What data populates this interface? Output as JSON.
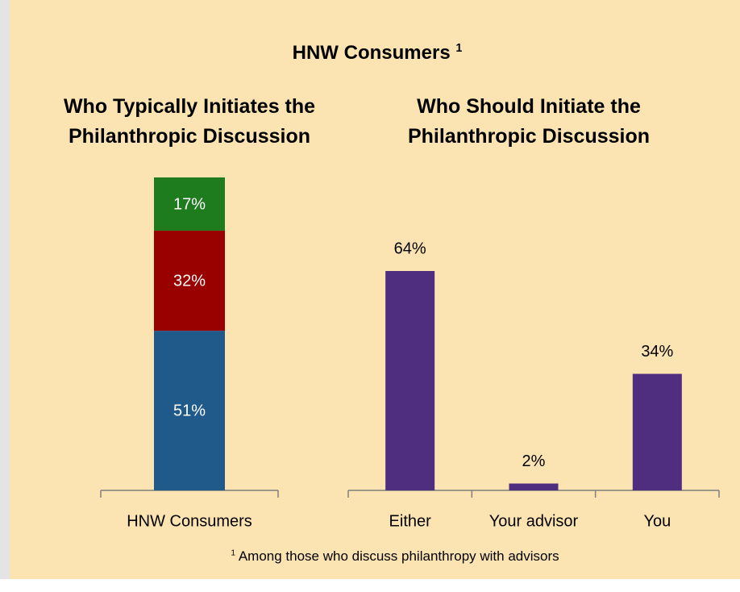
{
  "title": "HNW Consumers",
  "title_mark": "1",
  "footnote": {
    "mark": "1",
    "text": "Among those who discuss philanthropy with advisors"
  },
  "chart_data": [
    {
      "type": "stacked_bar",
      "title": "Who Typically Initiates the Philanthropic Discussion",
      "categories": [
        "HNW Consumers"
      ],
      "ylim": [
        0,
        100
      ],
      "series": [
        {
          "color": "#1f5a8a",
          "values": [
            51
          ],
          "value_labels": [
            "51%"
          ]
        },
        {
          "color": "#990000",
          "values": [
            32
          ],
          "value_labels": [
            "32%"
          ]
        },
        {
          "color": "#1e7b1e",
          "values": [
            17
          ],
          "value_labels": [
            "17%"
          ]
        }
      ]
    },
    {
      "type": "bar",
      "title": "Who Should Initiate the Philanthropic Discussion",
      "categories": [
        "Either",
        "Your advisor",
        "You"
      ],
      "ylim": [
        0,
        70
      ],
      "color": "#4f2d7f",
      "values": [
        64,
        2,
        34
      ],
      "value_labels": [
        "64%",
        "2%",
        "34%"
      ]
    }
  ]
}
